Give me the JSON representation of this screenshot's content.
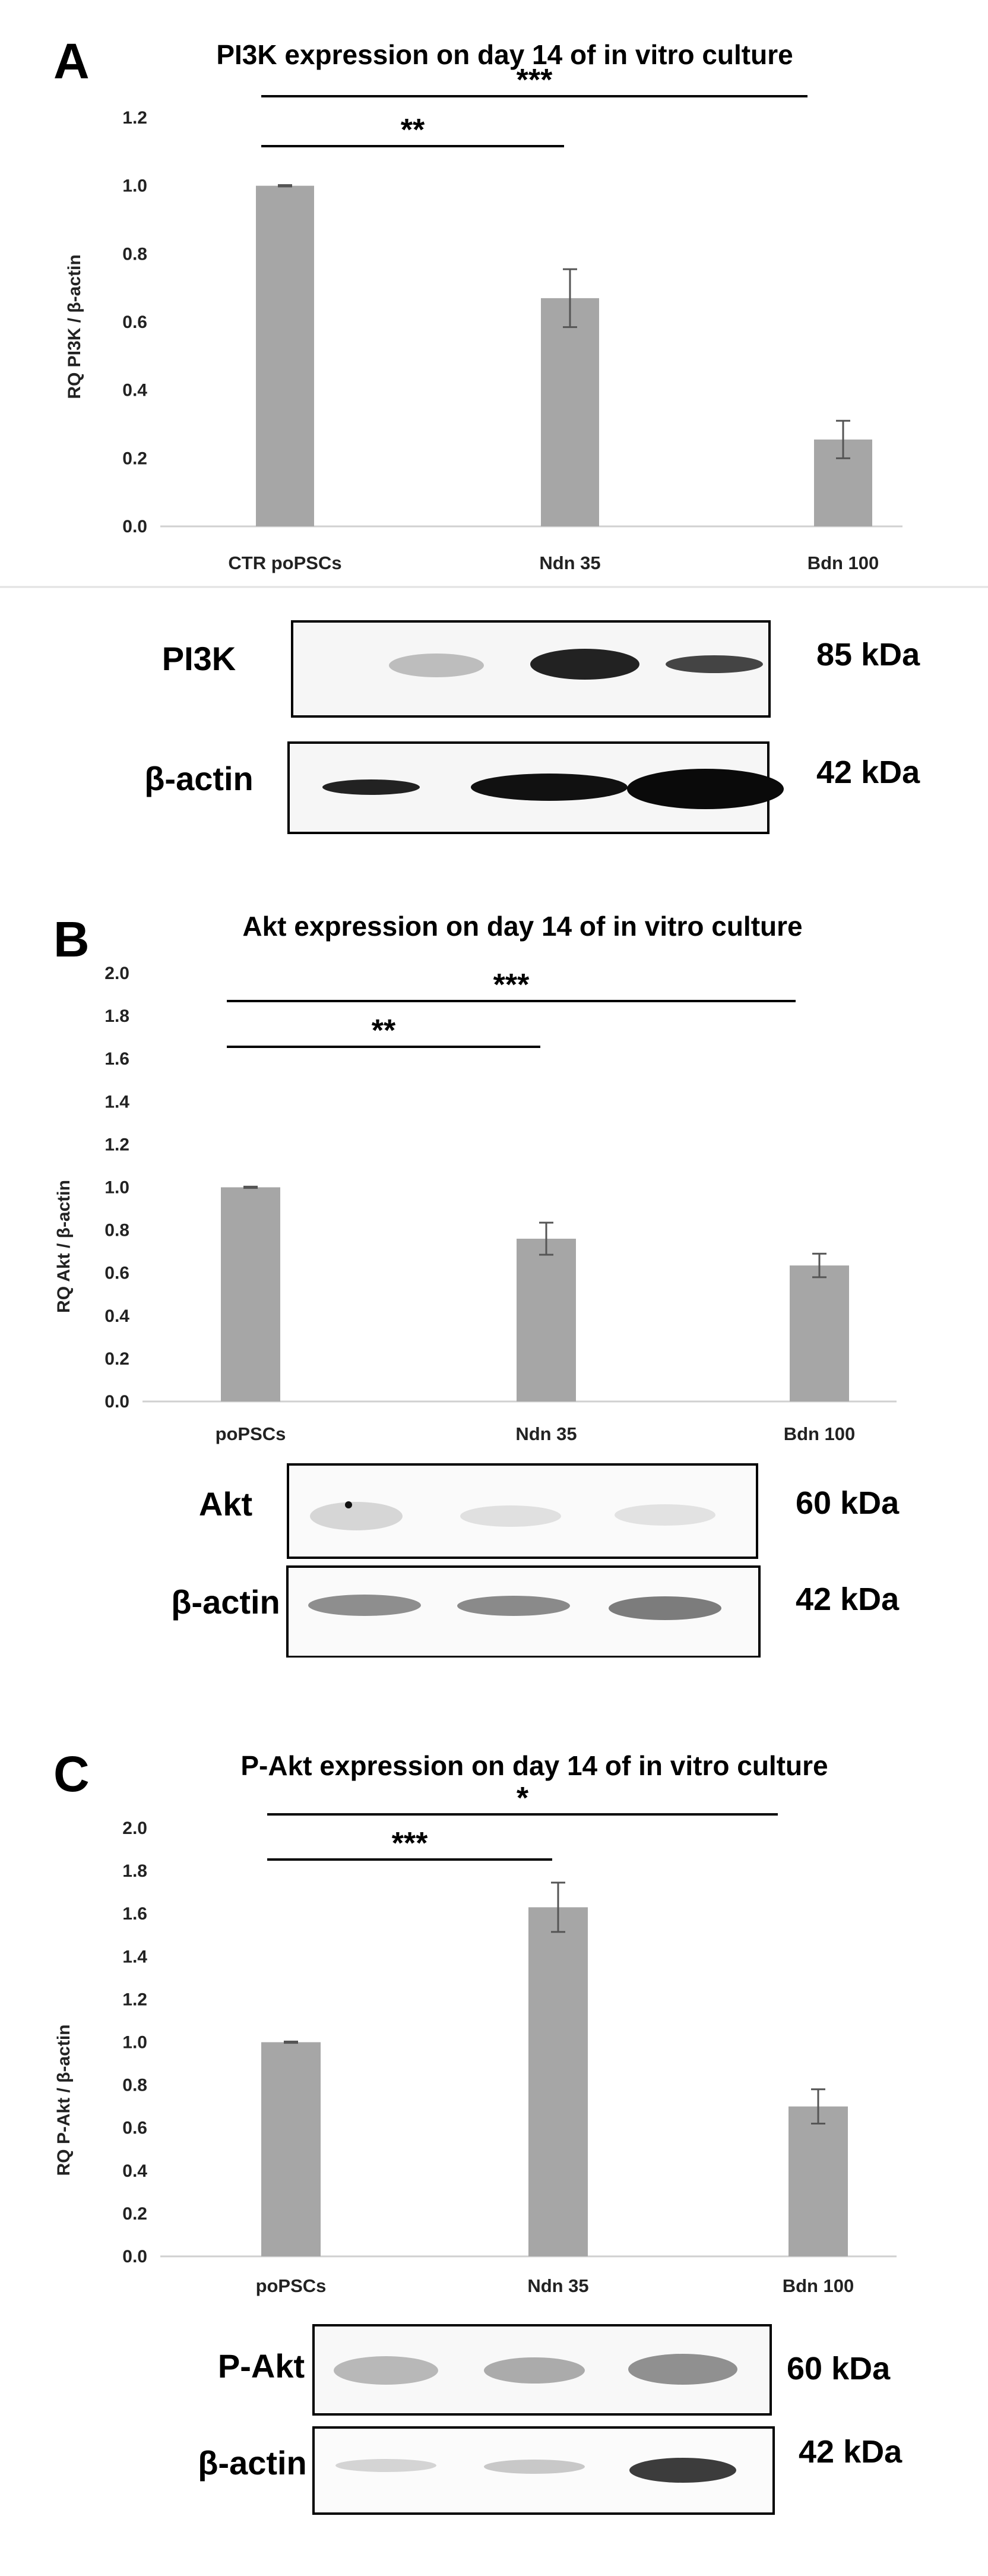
{
  "chart_data": [
    {
      "panel_label": "A",
      "type": "bar",
      "title": "PI3K expression on day 14 of in vitro culture",
      "ylabel": "RQ PI3K / β-actin",
      "ylim": [
        0,
        1.2
      ],
      "yticks": [
        "0.0",
        "0.2",
        "0.4",
        "0.6",
        "0.8",
        "1.0",
        "1.2"
      ],
      "categories": [
        "CTR poPSCs",
        "Ndn 35",
        "Bdn 100"
      ],
      "values": [
        1.0,
        0.67,
        0.255
      ],
      "errors": [
        0.002,
        0.085,
        0.055
      ],
      "significance": [
        {
          "from": 0,
          "to": 1,
          "label": "**"
        },
        {
          "from": 0,
          "to": 2,
          "label": "***"
        }
      ],
      "blots": [
        {
          "label": "PI3K",
          "kda": "85 kDa"
        },
        {
          "label": "β-actin",
          "kda": "42 kDa"
        }
      ]
    },
    {
      "panel_label": "B",
      "type": "bar",
      "title": "Akt expression on day 14 of in vitro culture",
      "ylabel": "RQ Akt / β-actin",
      "ylim": [
        0,
        2.0
      ],
      "yticks": [
        "0.0",
        "0.2",
        "0.4",
        "0.6",
        "0.8",
        "1.0",
        "1.2",
        "1.4",
        "1.6",
        "1.8",
        "2.0"
      ],
      "categories": [
        "poPSCs",
        "Ndn 35",
        "Bdn 100"
      ],
      "values": [
        1.0,
        0.76,
        0.635
      ],
      "errors": [
        0.003,
        0.075,
        0.055
      ],
      "significance": [
        {
          "from": 0,
          "to": 1,
          "label": "**"
        },
        {
          "from": 0,
          "to": 2,
          "label": "***"
        }
      ],
      "blots": [
        {
          "label": "Akt",
          "kda": "60 kDa"
        },
        {
          "label": "β-actin",
          "kda": "42 kDa"
        }
      ]
    },
    {
      "panel_label": "C",
      "type": "bar",
      "title": "P-Akt expression on day 14 of in vitro culture",
      "ylabel": "RQ P-Akt / β-actin",
      "ylim": [
        0,
        2.0
      ],
      "yticks": [
        "0.0",
        "0.2",
        "0.4",
        "0.6",
        "0.8",
        "1.0",
        "1.2",
        "1.4",
        "1.6",
        "1.8",
        "2.0"
      ],
      "categories": [
        "poPSCs",
        "Ndn 35",
        "Bdn 100"
      ],
      "values": [
        1.0,
        1.63,
        0.7
      ],
      "errors": [
        0.003,
        0.115,
        0.08
      ],
      "significance": [
        {
          "from": 0,
          "to": 1,
          "label": "***"
        },
        {
          "from": 0,
          "to": 2,
          "label": "*"
        }
      ],
      "blots": [
        {
          "label": "P-Akt",
          "kda": "60 kDa"
        },
        {
          "label": "β-actin",
          "kda": "42 kDa"
        }
      ]
    }
  ]
}
